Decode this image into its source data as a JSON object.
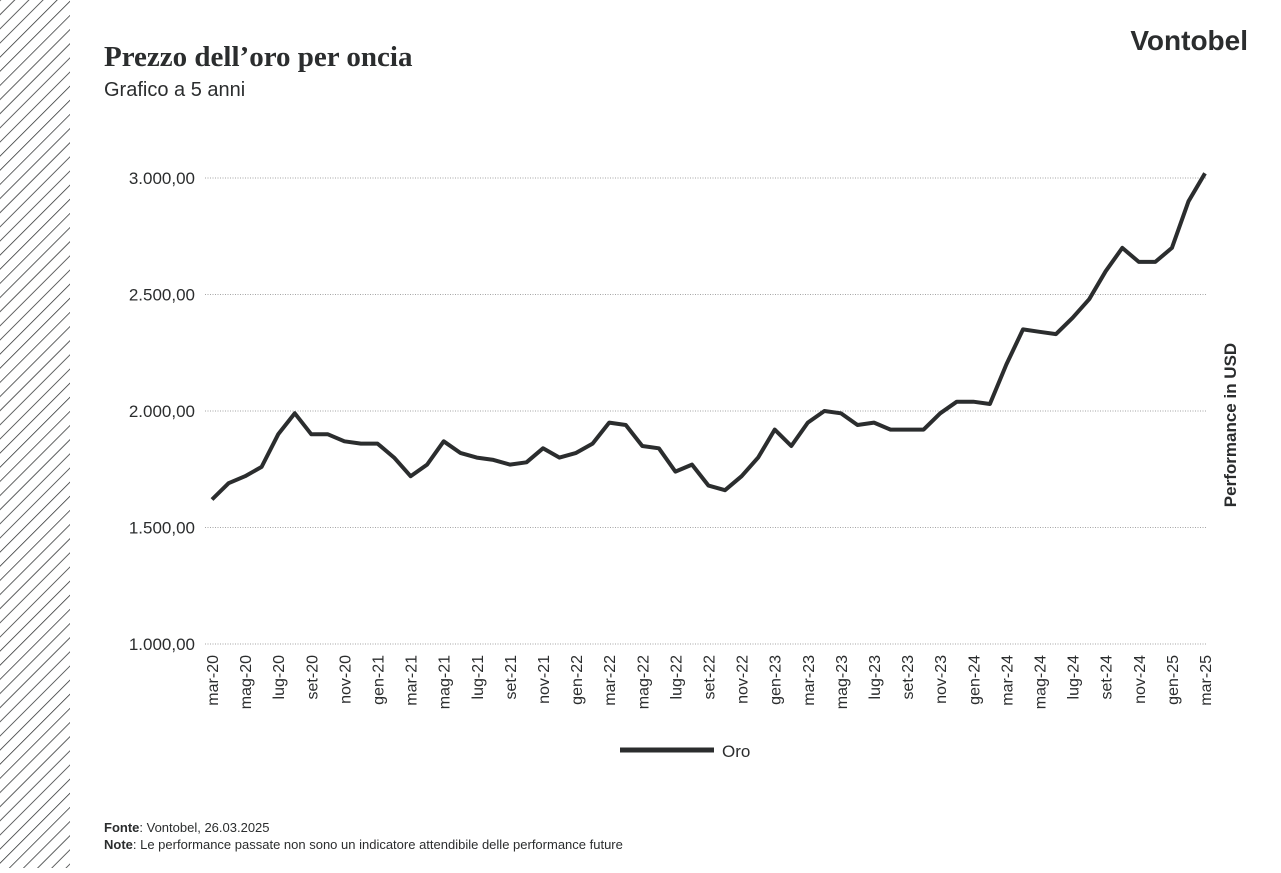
{
  "brand": "Vontobel",
  "chart_data": {
    "type": "line",
    "title": "Prezzo dell’oro per oncia",
    "subtitle": "Grafico a 5 anni",
    "y_axis_label": "Performance in USD",
    "categories": [
      "mar-20",
      null,
      "mag-20",
      null,
      "lug-20",
      null,
      "set-20",
      null,
      "nov-20",
      null,
      "gen-21",
      null,
      "mar-21",
      null,
      "mag-21",
      null,
      "lug-21",
      null,
      "set-21",
      null,
      "nov-21",
      null,
      "gen-22",
      null,
      "mar-22",
      null,
      "mag-22",
      null,
      "lug-22",
      null,
      "set-22",
      null,
      "nov-22",
      null,
      "gen-23",
      null,
      "mar-23",
      null,
      "mag-23",
      null,
      "lug-23",
      null,
      "set-23",
      null,
      "nov-23",
      null,
      "gen-24",
      null,
      "mar-24",
      null,
      "mag-24",
      null,
      "lug-24",
      null,
      "set-24",
      null,
      "nov-24",
      null,
      "gen-25",
      null,
      "mar-25"
    ],
    "series": [
      {
        "name": "Oro",
        "color": "#2b2d2e",
        "values": [
          1620,
          1690,
          1720,
          1760,
          1900,
          1990,
          1900,
          1900,
          1870,
          1860,
          1860,
          1800,
          1720,
          1770,
          1870,
          1820,
          1800,
          1790,
          1770,
          1780,
          1840,
          1800,
          1820,
          1860,
          1950,
          1940,
          1850,
          1840,
          1740,
          1770,
          1680,
          1660,
          1720,
          1800,
          1920,
          1850,
          1950,
          2000,
          1990,
          1940,
          1950,
          1920,
          1920,
          1920,
          1990,
          2040,
          2040,
          2030,
          2200,
          2350,
          2340,
          2330,
          2400,
          2480,
          2600,
          2700,
          2640,
          2640,
          2700,
          2900,
          3020
        ]
      }
    ],
    "ylim": [
      1000,
      3000
    ],
    "yticks": [
      {
        "value": 1000,
        "label": "1.000,00"
      },
      {
        "value": 1500,
        "label": "1.500,00"
      },
      {
        "value": 2000,
        "label": "2.000,00"
      },
      {
        "value": 2500,
        "label": "2.500,00"
      },
      {
        "value": 3000,
        "label": "3.000,00"
      }
    ],
    "grid": true
  },
  "notes": [
    {
      "label": "Fonte",
      "text": ": Vontobel, 26.03.2025"
    },
    {
      "label": "Note",
      "text": ": Le performance passate non sono un indicatore attendibile delle performance future"
    }
  ]
}
